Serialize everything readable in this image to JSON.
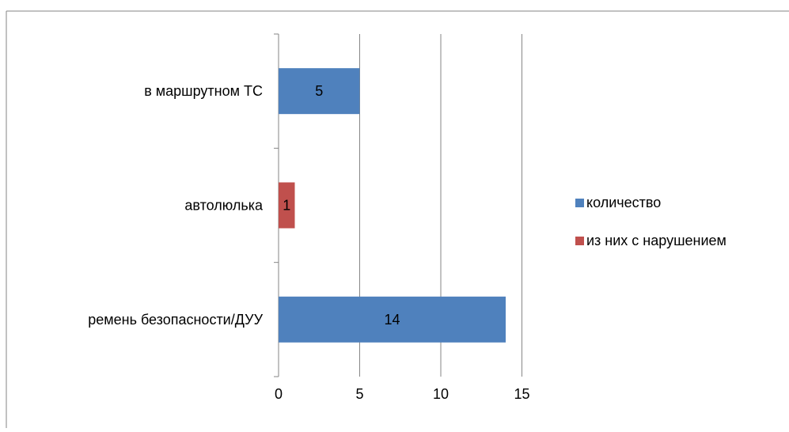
{
  "chart_data": {
    "type": "bar",
    "orientation": "horizontal",
    "categories": [
      "в маршрутном ТС",
      "автолюлька",
      "ремень безопасности/ДУУ"
    ],
    "series": [
      {
        "name": "количество",
        "color": "#4f81bd",
        "values": [
          5,
          null,
          14
        ]
      },
      {
        "name": "из них с нарушением",
        "color": "#c0504d",
        "values": [
          null,
          1,
          null
        ]
      }
    ],
    "xlim": [
      0,
      15
    ],
    "xticks": [
      0,
      5,
      10,
      15
    ],
    "grid": true,
    "legend": "right",
    "title": "",
    "xlabel": "",
    "ylabel": ""
  }
}
